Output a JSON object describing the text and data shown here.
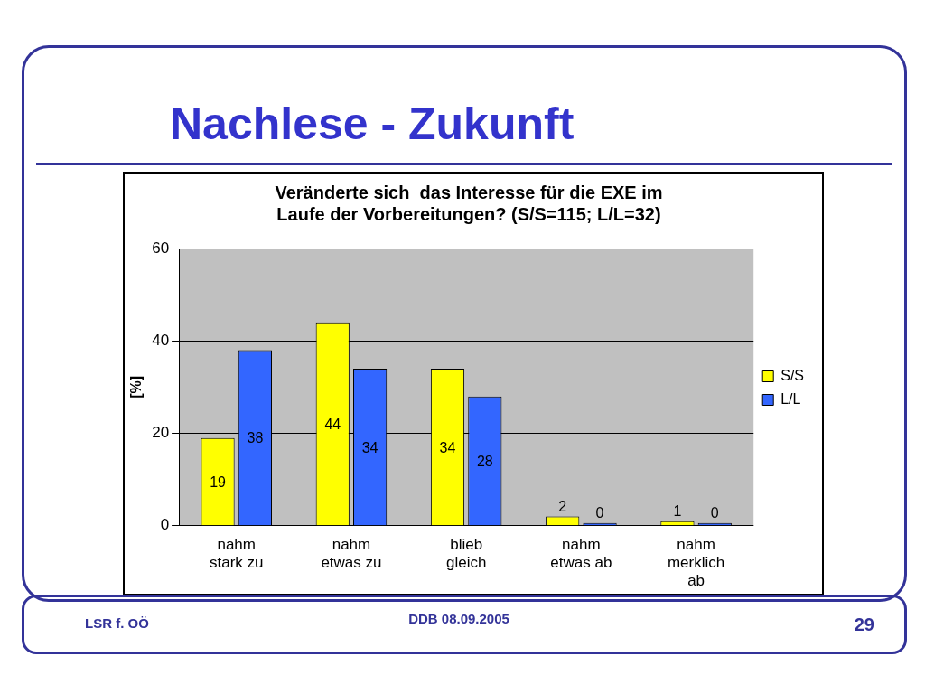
{
  "chart_data": {
    "type": "bar",
    "title": "Nachlese - Zukunft",
    "subtitle": "Veränderte sich  das Interesse für die EXE im Laufe der Vorbereitungen? (S/S=115; L/L=32)",
    "ylabel": "[%]",
    "categories": [
      "nahm stark zu",
      "nahm etwas zu",
      "blieb gleich",
      "nahm etwas ab",
      "nahm merklich ab"
    ],
    "series": [
      {
        "name": "S/S",
        "color": "#ffff00",
        "values": [
          19,
          44,
          34,
          2,
          1
        ]
      },
      {
        "name": "L/L",
        "color": "#3366ff",
        "values": [
          38,
          34,
          28,
          0,
          0
        ]
      }
    ],
    "ylim": [
      0,
      60
    ],
    "yticks": [
      0,
      20,
      40,
      60
    ],
    "grid": "y",
    "legend": "right",
    "data_labels": true,
    "annotations": [
      "LSR f. OÖ",
      "DDB 08.09.2005",
      "29"
    ]
  }
}
